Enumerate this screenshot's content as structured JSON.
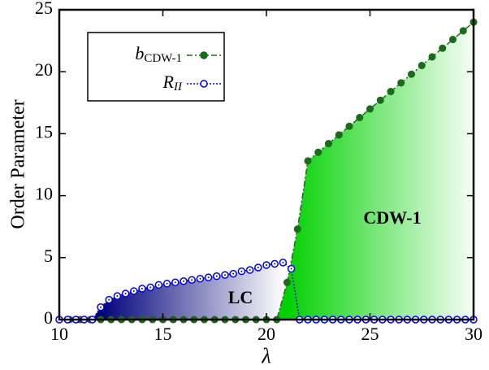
{
  "chart_data": {
    "type": "line",
    "x_label": "λ",
    "y_label": "Order Parameter",
    "xlim": [
      10,
      30
    ],
    "xticks": [
      10,
      15,
      20,
      25,
      30
    ],
    "ylim": [
      0,
      25
    ],
    "yticks": [
      0,
      5,
      10,
      15,
      20,
      25
    ],
    "legend": "upper left",
    "annotations": [
      "LC",
      "CDW-1"
    ],
    "series": [
      {
        "name": "bCDW-1",
        "color": "#1a6b1a",
        "x": [
          10,
          10.5,
          11,
          11.5,
          12,
          12.5,
          13,
          13.5,
          14,
          14.5,
          15,
          15.5,
          16,
          16.5,
          17,
          17.5,
          18,
          18.5,
          19,
          19.5,
          20,
          20.5,
          21,
          21.5,
          22,
          22.5,
          23,
          23.5,
          24,
          24.5,
          25,
          25.5,
          26,
          26.5,
          27,
          27.5,
          28,
          28.5,
          29,
          29.5,
          30
        ],
        "values": [
          0,
          0,
          0,
          0,
          0,
          0,
          0,
          0,
          0,
          0,
          0,
          0,
          0,
          0,
          0,
          0,
          0,
          0,
          0,
          0,
          0,
          0,
          3.0,
          7.3,
          12.8,
          13.5,
          14.2,
          14.9,
          15.6,
          16.3,
          17.0,
          17.7,
          18.4,
          19.1,
          19.8,
          20.5,
          21.2,
          21.9,
          22.6,
          23.3,
          24.0
        ]
      },
      {
        "name": "RII",
        "color": "#0000ee",
        "x": [
          10,
          10.4,
          10.8,
          11.2,
          11.6,
          12,
          12.4,
          12.8,
          13.2,
          13.6,
          14,
          14.4,
          14.8,
          15.2,
          15.6,
          16,
          16.4,
          16.8,
          17.2,
          17.6,
          18,
          18.4,
          18.8,
          19.2,
          19.6,
          20,
          20.4,
          20.8,
          21.2,
          21.6,
          22,
          22.4,
          22.8,
          23.2,
          23.6,
          24,
          24.4,
          24.8,
          25.2,
          25.6,
          26,
          26.4,
          26.8,
          27.2,
          27.6,
          28,
          28.4,
          28.8,
          29.2,
          29.6,
          30
        ],
        "values": [
          0,
          0,
          0,
          0,
          0,
          1.0,
          1.6,
          1.9,
          2.1,
          2.3,
          2.5,
          2.6,
          2.8,
          2.9,
          3.0,
          3.1,
          3.2,
          3.3,
          3.4,
          3.5,
          3.6,
          3.7,
          3.9,
          4.0,
          4.2,
          4.4,
          4.5,
          4.6,
          4.1,
          0,
          0,
          0,
          0,
          0,
          0,
          0,
          0,
          0,
          0,
          0,
          0,
          0,
          0,
          0,
          0,
          0,
          0,
          0,
          0,
          0,
          0
        ]
      }
    ]
  }
}
